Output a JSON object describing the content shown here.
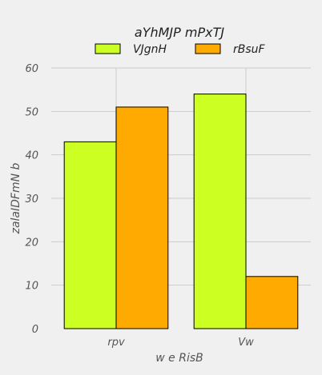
{
  "chart_data": {
    "type": "bar",
    "title": "aYhMJP mPxTJ",
    "xlabel": "w e  RisB",
    "ylabel": "zalaIDFmN b",
    "categories": [
      "rpv",
      "Vw"
    ],
    "series": [
      {
        "name": "VJgnH",
        "color": "#ccff22",
        "values": [
          43,
          54
        ]
      },
      {
        "name": "rBsuF",
        "color": "#ffaa00",
        "values": [
          51,
          12
        ]
      }
    ],
    "ylim": [
      0,
      60
    ],
    "yticks": [
      0,
      10,
      20,
      30,
      40,
      50,
      60
    ],
    "grid": true,
    "legend_position": "top-center"
  }
}
